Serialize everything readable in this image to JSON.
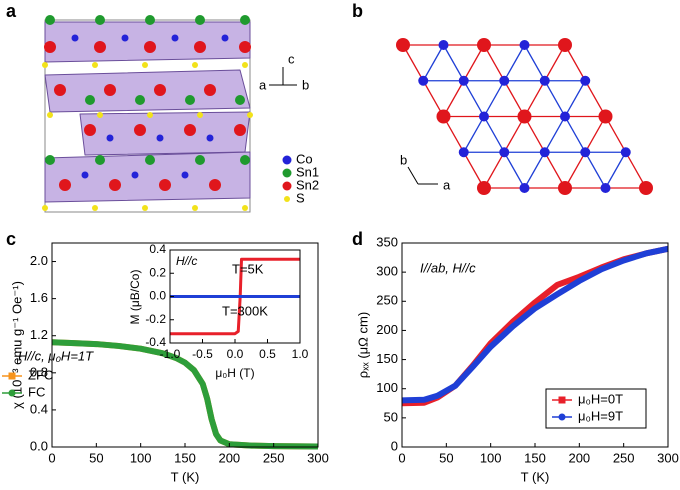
{
  "panel_a": {
    "label": "a",
    "axes": [
      "c",
      "a",
      "b"
    ],
    "legend": [
      "Co",
      "Sn1",
      "Sn2",
      "S"
    ]
  },
  "panel_b": {
    "label": "b",
    "axes": [
      "b",
      "a"
    ]
  },
  "chart_data": [
    {
      "type": "line",
      "label": "c",
      "xlabel": "T (K)",
      "ylabel": "χ (10⁻³ emu g⁻¹ Oe⁻¹)",
      "annotation": "H//c, μ₀H=1T",
      "xlim": [
        0,
        300
      ],
      "xticks": [
        0,
        50,
        100,
        150,
        200,
        250,
        300
      ],
      "ylim": [
        0,
        2.2
      ],
      "yticks": [
        {
          "value": 0,
          "label": "0.0"
        },
        0.4,
        0.8,
        1.2,
        1.6,
        {
          "value": 2,
          "label": "2.0"
        }
      ],
      "x": [
        0,
        25,
        50,
        75,
        100,
        125,
        140,
        150,
        160,
        170,
        175,
        180,
        185,
        190,
        200,
        225,
        250,
        300
      ],
      "series": [
        {
          "name": "ZFC",
          "color": "#f7941d",
          "marker": "square",
          "values": [
            1.13,
            1.12,
            1.11,
            1.09,
            1.06,
            1.01,
            0.96,
            0.91,
            0.83,
            0.68,
            0.52,
            0.3,
            0.14,
            0.07,
            0.03,
            0.015,
            0.01,
            0.005
          ]
        },
        {
          "name": "FC",
          "color": "#2e9e3a",
          "marker": "circle",
          "values": [
            1.13,
            1.12,
            1.11,
            1.09,
            1.06,
            1.01,
            0.96,
            0.91,
            0.83,
            0.68,
            0.52,
            0.3,
            0.14,
            0.07,
            0.03,
            0.015,
            0.01,
            0.005
          ]
        }
      ]
    },
    {
      "type": "line",
      "xlabel": "μ₀H (T)",
      "ylabel": "M (μB/Co)",
      "annotation": "H//c",
      "xlim": [
        -1,
        1
      ],
      "xticks": [
        {
          "value": -1,
          "label": "-1.0"
        },
        -0.5,
        {
          "value": 0,
          "label": "0.0"
        },
        0.5,
        {
          "value": 1,
          "label": "1.0"
        }
      ],
      "ylim": [
        -0.4,
        0.4
      ],
      "yticks": [
        -0.4,
        -0.2,
        {
          "value": 0,
          "label": "0.0"
        },
        0.2,
        0.4
      ],
      "x": [
        -1,
        -0.5,
        0,
        0.05,
        0.08,
        0.1,
        0.5,
        1
      ],
      "series": [
        {
          "name": "T=5K",
          "color": "#e8202a",
          "values": [
            -0.32,
            -0.32,
            -0.32,
            -0.3,
            0,
            0.32,
            0.32,
            0.32
          ]
        },
        {
          "name": "T=300K",
          "color": "#1f3fd6",
          "values": [
            0,
            0,
            0,
            0,
            0,
            0,
            0,
            0
          ]
        }
      ]
    },
    {
      "type": "line",
      "label": "d",
      "xlabel": "T (K)",
      "ylabel": "ρₓₓ (μΩ cm)",
      "annotation": "I//ab, H//c",
      "xlim": [
        0,
        300
      ],
      "xticks": [
        0,
        50,
        100,
        150,
        200,
        250,
        300
      ],
      "ylim": [
        0,
        350
      ],
      "yticks": [
        0,
        50,
        100,
        150,
        200,
        250,
        300,
        350
      ],
      "x": [
        0,
        25,
        40,
        60,
        80,
        100,
        125,
        150,
        175,
        200,
        225,
        250,
        275,
        300
      ],
      "series": [
        {
          "name": "μ₀H=0T",
          "color": "#e8202a",
          "marker": "square",
          "values": [
            75,
            76,
            85,
            105,
            140,
            178,
            215,
            248,
            278,
            292,
            308,
            322,
            332,
            340
          ]
        },
        {
          "name": "μ₀H=9T",
          "color": "#1f3fd6",
          "marker": "circle",
          "values": [
            80,
            81,
            88,
            105,
            138,
            172,
            207,
            238,
            262,
            285,
            305,
            320,
            332,
            340
          ]
        }
      ]
    }
  ]
}
